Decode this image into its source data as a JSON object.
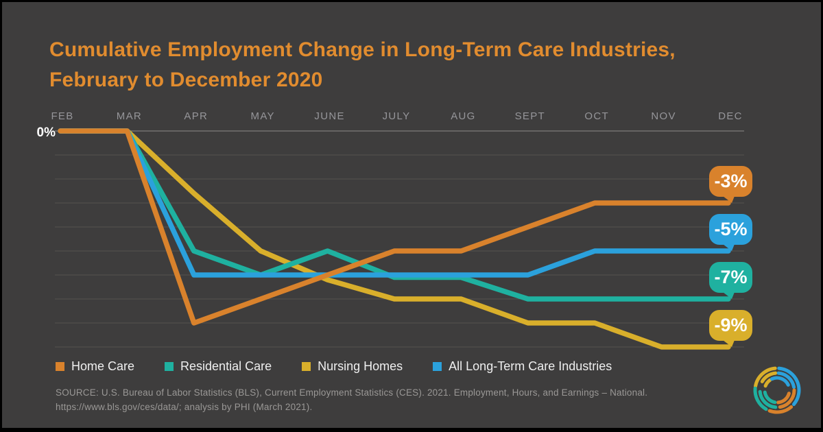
{
  "page": {
    "background": "#3E3D3D",
    "frame_color": "#000000"
  },
  "title": {
    "line1": "Cumulative Employment Change in Long-Term Care Industries,",
    "line2": "February to December 2020",
    "color": "#E18C2F"
  },
  "chart_data": {
    "type": "line",
    "title": "Cumulative Employment Change in Long-Term Care Industries, February to December 2020",
    "x_categories": [
      "FEB",
      "MAR",
      "APR",
      "MAY",
      "JUNE",
      "JULY",
      "AUG",
      "SEPT",
      "OCT",
      "NOV",
      "DEC"
    ],
    "unit": "percent",
    "y_axis": {
      "zero_label": "0%",
      "min": -9,
      "max": 0,
      "gridline_step": 1,
      "gridlines_visible": true
    },
    "legend_position": "bottom",
    "series": [
      {
        "name": "Home Care",
        "color": "#D9822C",
        "end_label": "-3%",
        "values": [
          0,
          0,
          -8,
          -7,
          -6,
          -5,
          -5,
          -4,
          -3,
          -3,
          -3
        ]
      },
      {
        "name": "Residential Care",
        "color": "#1FB1A0",
        "end_label": "-7%",
        "values": [
          0,
          0,
          -5,
          -6,
          -5,
          -6.1,
          -6.1,
          -7,
          -7,
          -7,
          -7
        ]
      },
      {
        "name": "Nursing Homes",
        "color": "#D9AF2B",
        "end_label": "-9%",
        "values": [
          0,
          0,
          -2.6,
          -5,
          -6.2,
          -7,
          -7,
          -8,
          -8,
          -9,
          -9
        ]
      },
      {
        "name": "All Long-Term Care Industries",
        "color": "#2BA1DC",
        "end_label": "-5%",
        "values": [
          0,
          0,
          -6,
          -6,
          -6,
          -6,
          -6,
          -6,
          -5,
          -5,
          -5
        ]
      }
    ],
    "gridline_color": "#56534F",
    "zero_line_color": "#8E8C89"
  },
  "axis": {
    "month_label_color": "#96969A"
  },
  "source": {
    "line1": "SOURCE: U.S. Bureau of Labor Statistics (BLS), Current Employment Statistics (CES). 2021. Employment, Hours, and Earnings – National.",
    "line2": "https://www.bls.gov/ces/data/; analysis by PHI (March 2021)."
  },
  "logo": {
    "arc_colors": [
      "#D9AF2B",
      "#2BA1DC",
      "#1FB1A0",
      "#D9822C"
    ]
  }
}
